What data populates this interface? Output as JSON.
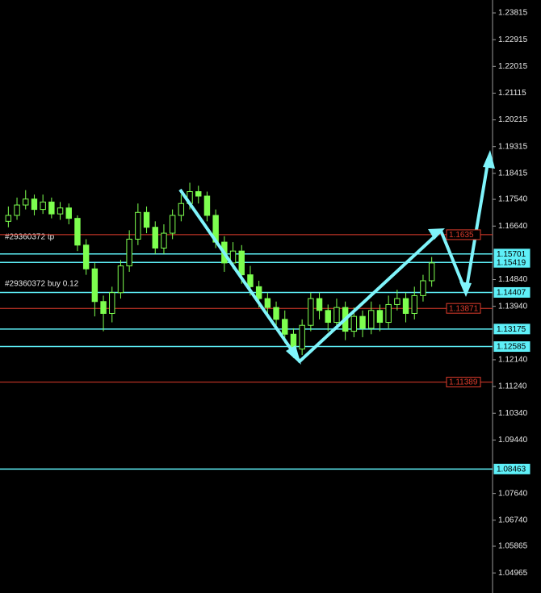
{
  "chart_data": {
    "type": "candlestick",
    "candle_color": "#7dff4f",
    "open": [
      1.168,
      1.17,
      1.1735,
      1.1755,
      1.172,
      1.1745,
      1.1705,
      1.1725,
      1.169,
      1.16,
      1.152,
      1.141,
      1.137,
      1.144,
      1.153,
      1.162,
      1.171,
      1.166,
      1.159,
      1.164,
      1.17,
      1.174,
      1.178,
      1.1765,
      1.17,
      1.161,
      1.154,
      1.158,
      1.15,
      1.146,
      1.142,
      1.139,
      1.135,
      1.13,
      1.125,
      1.133,
      1.142,
      1.138,
      1.134,
      1.139,
      1.131,
      1.136,
      1.132,
      1.138,
      1.134,
      1.14,
      1.142,
      1.137,
      1.143,
      1.148
    ],
    "high": [
      1.173,
      1.176,
      1.1785,
      1.177,
      1.177,
      1.176,
      1.1745,
      1.174,
      1.17,
      1.162,
      1.154,
      1.143,
      1.146,
      1.155,
      1.165,
      1.174,
      1.173,
      1.168,
      1.167,
      1.172,
      1.177,
      1.181,
      1.18,
      1.178,
      1.172,
      1.163,
      1.161,
      1.16,
      1.153,
      1.148,
      1.144,
      1.141,
      1.138,
      1.132,
      1.135,
      1.144,
      1.144,
      1.14,
      1.142,
      1.141,
      1.139,
      1.138,
      1.141,
      1.14,
      1.143,
      1.145,
      1.144,
      1.146,
      1.15,
      1.156
    ],
    "low": [
      1.166,
      1.1685,
      1.172,
      1.17,
      1.1705,
      1.169,
      1.1685,
      1.167,
      1.158,
      1.15,
      1.136,
      1.131,
      1.134,
      1.142,
      1.151,
      1.16,
      1.164,
      1.157,
      1.157,
      1.162,
      1.168,
      1.172,
      1.174,
      1.168,
      1.159,
      1.151,
      1.152,
      1.147,
      1.143,
      1.139,
      1.136,
      1.132,
      1.127,
      1.122,
      1.123,
      1.131,
      1.135,
      1.131,
      1.132,
      1.128,
      1.129,
      1.129,
      1.13,
      1.131,
      1.132,
      1.138,
      1.134,
      1.135,
      1.141,
      1.146
    ],
    "close": [
      1.17,
      1.1735,
      1.1755,
      1.172,
      1.1745,
      1.1705,
      1.1725,
      1.169,
      1.16,
      1.152,
      1.141,
      1.137,
      1.144,
      1.153,
      1.162,
      1.171,
      1.166,
      1.159,
      1.164,
      1.17,
      1.174,
      1.178,
      1.1765,
      1.17,
      1.161,
      1.154,
      1.158,
      1.15,
      1.146,
      1.142,
      1.139,
      1.135,
      1.13,
      1.125,
      1.133,
      1.142,
      1.138,
      1.134,
      1.139,
      1.131,
      1.136,
      1.132,
      1.138,
      1.134,
      1.14,
      1.142,
      1.137,
      1.143,
      1.148,
      1.154
    ],
    "ylim": [
      1.0429,
      1.2425
    ],
    "yticks": [
      1.23815,
      1.22915,
      1.22015,
      1.21115,
      1.20215,
      1.19315,
      1.18415,
      {
        "value": 1.1754,
        "label": "1.17540"
      },
      {
        "value": 1.1664,
        "label": "1.16640"
      },
      {
        "value": 1.1484,
        "label": "1.14840"
      },
      {
        "value": 1.1394,
        "label": "1.13940"
      },
      {
        "value": 1.1214,
        "label": "1.12140"
      },
      {
        "value": 1.1124,
        "label": "1.11240"
      },
      {
        "value": 1.1034,
        "label": "1.10340"
      },
      {
        "value": 1.0944,
        "label": "1.09440"
      },
      {
        "value": 1.0764,
        "label": "1.07640"
      },
      {
        "value": 1.0674,
        "label": "1.06740"
      },
      1.05865,
      1.04965
    ],
    "levels": [
      {
        "value": 1.1635,
        "color": "#e03c2c"
      },
      {
        "value": 1.15701,
        "color": "#5ef0f8"
      },
      {
        "value": 1.15419,
        "color": "#5ef0f8"
      },
      {
        "value": 1.14407,
        "color": "#5ef0f8"
      },
      {
        "value": 1.13871,
        "color": "#e03c2c"
      },
      {
        "value": 1.13175,
        "color": "#5ef0f8"
      },
      {
        "value": 1.12585,
        "color": "#5ef0f8"
      },
      {
        "value": 1.11389,
        "color": "#e03c2c"
      },
      {
        "value": 1.08463,
        "color": "#5ef0f8"
      }
    ],
    "annotations": [
      "#29360372 tp",
      "#29360372 buy 0.12"
    ]
  }
}
